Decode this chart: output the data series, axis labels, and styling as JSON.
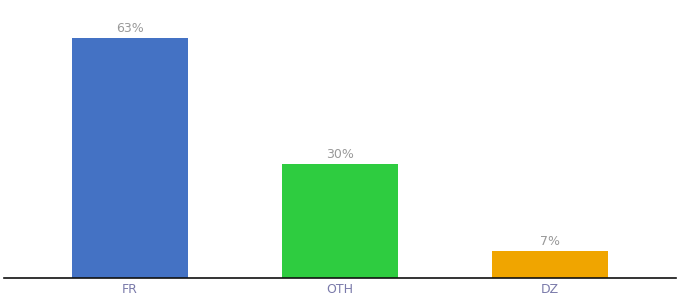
{
  "categories": [
    "FR",
    "OTH",
    "DZ"
  ],
  "values": [
    63,
    30,
    7
  ],
  "bar_colors": [
    "#4472c4",
    "#2ecc40",
    "#f0a500"
  ],
  "labels": [
    "63%",
    "30%",
    "7%"
  ],
  "background_color": "#ffffff",
  "ylim": [
    0,
    72
  ],
  "label_fontsize": 9,
  "tick_fontsize": 9,
  "tick_color": "#7a7aaa",
  "label_color": "#999999",
  "bar_width": 0.55
}
